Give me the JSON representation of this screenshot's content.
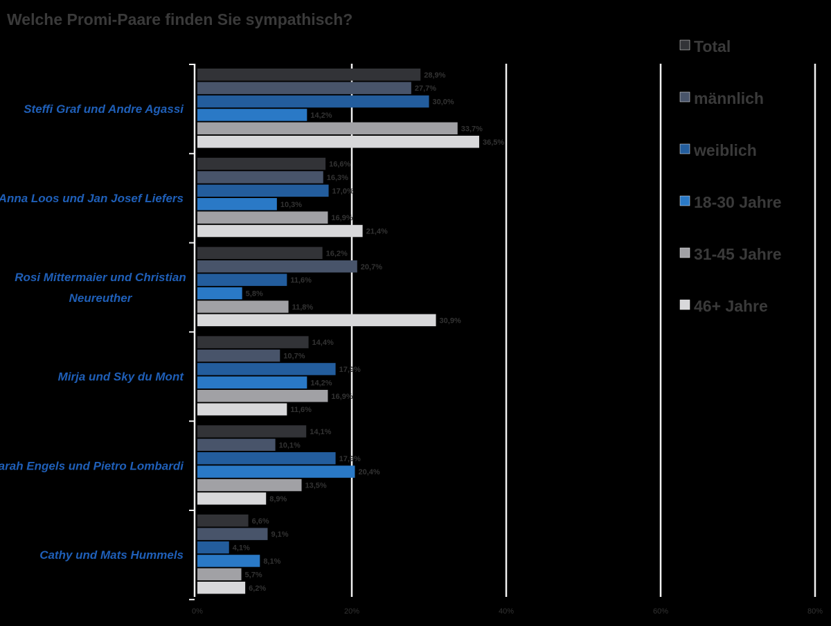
{
  "chart_data": {
    "type": "bar",
    "orientation": "horizontal",
    "title": "Welche Promi-Paare finden Sie sympathisch?",
    "categories": [
      "Steffi Graf und Andre Agassi",
      "Anna Loos und Jan Josef Liefers",
      "Rosi Mittermaier und Christian Neureuther",
      "Mirja und Sky du Mont",
      "Sarah Engels und Pietro Lombardi",
      "Cathy und Mats Hummels"
    ],
    "series": [
      {
        "name": "Total",
        "color": "#323337",
        "values": [
          28.9,
          16.6,
          16.2,
          14.4,
          14.1,
          6.6
        ]
      },
      {
        "name": "männlich",
        "color": "#48546a",
        "values": [
          27.7,
          16.3,
          20.7,
          10.7,
          10.1,
          9.1
        ]
      },
      {
        "name": "weiblich",
        "color": "#235d9d",
        "values": [
          30.0,
          17.0,
          11.6,
          17.9,
          17.9,
          4.1
        ]
      },
      {
        "name": "18-30 Jahre",
        "color": "#2a79c6",
        "values": [
          14.2,
          10.3,
          5.8,
          14.2,
          20.4,
          8.1
        ]
      },
      {
        "name": "31-45 Jahre",
        "color": "#a1a1a5",
        "values": [
          33.7,
          16.9,
          11.8,
          16.9,
          13.5,
          5.7
        ]
      },
      {
        "name": "46+ Jahre",
        "color": "#d8d8da",
        "values": [
          36.5,
          21.4,
          30.9,
          11.6,
          8.9,
          6.2
        ]
      }
    ],
    "data_labels": [
      [
        "28,9%",
        "16,6%",
        "16,2%",
        "14,4%",
        "14,1%",
        "6,6%"
      ],
      [
        "27,7%",
        "16,3%",
        "20,7%",
        "10,7%",
        "10,1%",
        "9,1%"
      ],
      [
        "30,0%",
        "17,0%",
        "11,6%",
        "17,9%",
        "17,9%",
        "4,1%"
      ],
      [
        "14,2%",
        "10,3%",
        "5,8%",
        "14,2%",
        "20,4%",
        "8,1%"
      ],
      [
        "33,7%",
        "16,9%",
        "11,8%",
        "16,9%",
        "13,5%",
        "5,7%"
      ],
      [
        "36,5%",
        "21,4%",
        "30,9%",
        "11,6%",
        "8,9%",
        "6,2%"
      ]
    ],
    "x_ticks": [
      0,
      20,
      40,
      60,
      80
    ],
    "x_tick_labels": [
      "0%",
      "20%",
      "40%",
      "60%",
      "80%"
    ],
    "xlim": [
      0,
      80
    ],
    "xlabel": "",
    "ylabel": "",
    "grid": true,
    "legend_position": "right",
    "colors": {
      "background": "#000000",
      "title": "#3a3a3a",
      "category_label": "#1f5fb8",
      "gridline": "#f2f2f2",
      "data_label": "#333333",
      "legend_text": "#3a3a3a",
      "tick_label": "#333333"
    }
  }
}
